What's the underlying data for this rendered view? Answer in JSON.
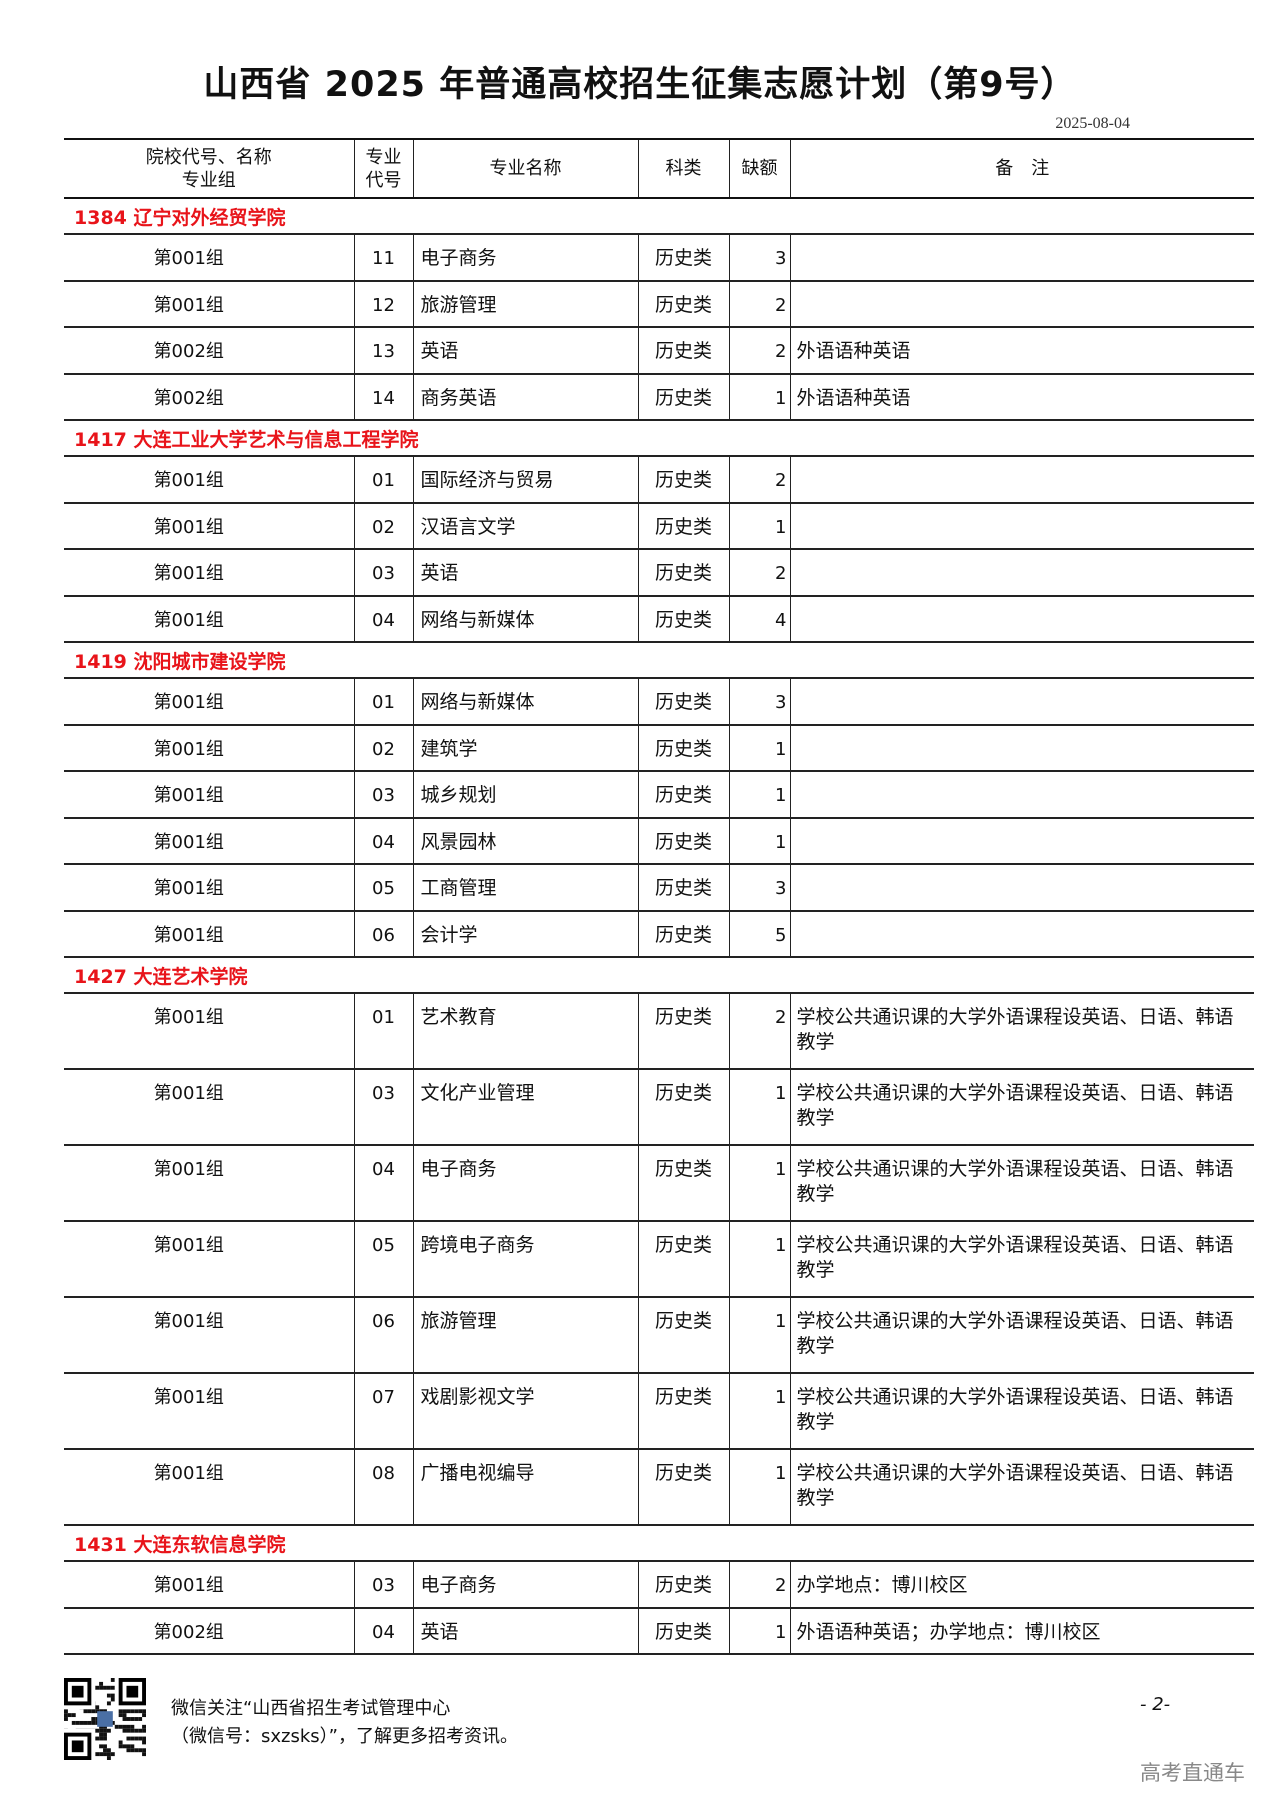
{
  "title": "山西省 2025 年普通高校招生征集志愿计划（第9号）",
  "date": "2025-08-04",
  "columns": {
    "school": "院校代号、名称\n专业组",
    "school_l1": "院校代号、名称",
    "school_l2": "专业组",
    "code_l1": "专业",
    "code_l2": "代号",
    "major": "专业名称",
    "category": "科类",
    "quota": "缺额",
    "note": "备　注"
  },
  "accent_color": "#e8141a",
  "sections": [
    {
      "school": "1384  辽宁对外经贸学院",
      "rows": [
        {
          "group": "第001组",
          "code": "11",
          "major": "电子商务",
          "category": "历史类",
          "quota": "3",
          "note": ""
        },
        {
          "group": "第001组",
          "code": "12",
          "major": "旅游管理",
          "category": "历史类",
          "quota": "2",
          "note": ""
        },
        {
          "group": "第002组",
          "code": "13",
          "major": "英语",
          "category": "历史类",
          "quota": "2",
          "note": "外语语种英语"
        },
        {
          "group": "第002组",
          "code": "14",
          "major": "商务英语",
          "category": "历史类",
          "quota": "1",
          "note": "外语语种英语"
        }
      ]
    },
    {
      "school": "1417  大连工业大学艺术与信息工程学院",
      "rows": [
        {
          "group": "第001组",
          "code": "01",
          "major": "国际经济与贸易",
          "category": "历史类",
          "quota": "2",
          "note": ""
        },
        {
          "group": "第001组",
          "code": "02",
          "major": "汉语言文学",
          "category": "历史类",
          "quota": "1",
          "note": ""
        },
        {
          "group": "第001组",
          "code": "03",
          "major": "英语",
          "category": "历史类",
          "quota": "2",
          "note": ""
        },
        {
          "group": "第001组",
          "code": "04",
          "major": "网络与新媒体",
          "category": "历史类",
          "quota": "4",
          "note": ""
        }
      ]
    },
    {
      "school": "1419  沈阳城市建设学院",
      "rows": [
        {
          "group": "第001组",
          "code": "01",
          "major": "网络与新媒体",
          "category": "历史类",
          "quota": "3",
          "note": ""
        },
        {
          "group": "第001组",
          "code": "02",
          "major": "建筑学",
          "category": "历史类",
          "quota": "1",
          "note": ""
        },
        {
          "group": "第001组",
          "code": "03",
          "major": "城乡规划",
          "category": "历史类",
          "quota": "1",
          "note": ""
        },
        {
          "group": "第001组",
          "code": "04",
          "major": "风景园林",
          "category": "历史类",
          "quota": "1",
          "note": ""
        },
        {
          "group": "第001组",
          "code": "05",
          "major": "工商管理",
          "category": "历史类",
          "quota": "3",
          "note": ""
        },
        {
          "group": "第001组",
          "code": "06",
          "major": "会计学",
          "category": "历史类",
          "quota": "5",
          "note": ""
        }
      ]
    },
    {
      "school": "1427  大连艺术学院",
      "rows": [
        {
          "group": "第001组",
          "code": "01",
          "major": "艺术教育",
          "category": "历史类",
          "quota": "2",
          "note": "学校公共通识课的大学外语课程设英语、日语、韩语教学"
        },
        {
          "group": "第001组",
          "code": "03",
          "major": "文化产业管理",
          "category": "历史类",
          "quota": "1",
          "note": "学校公共通识课的大学外语课程设英语、日语、韩语教学"
        },
        {
          "group": "第001组",
          "code": "04",
          "major": "电子商务",
          "category": "历史类",
          "quota": "1",
          "note": "学校公共通识课的大学外语课程设英语、日语、韩语教学"
        },
        {
          "group": "第001组",
          "code": "05",
          "major": "跨境电子商务",
          "category": "历史类",
          "quota": "1",
          "note": "学校公共通识课的大学外语课程设英语、日语、韩语教学"
        },
        {
          "group": "第001组",
          "code": "06",
          "major": "旅游管理",
          "category": "历史类",
          "quota": "1",
          "note": "学校公共通识课的大学外语课程设英语、日语、韩语教学"
        },
        {
          "group": "第001组",
          "code": "07",
          "major": "戏剧影视文学",
          "category": "历史类",
          "quota": "1",
          "note": "学校公共通识课的大学外语课程设英语、日语、韩语教学"
        },
        {
          "group": "第001组",
          "code": "08",
          "major": "广播电视编导",
          "category": "历史类",
          "quota": "1",
          "note": "学校公共通识课的大学外语课程设英语、日语、韩语教学"
        }
      ]
    },
    {
      "school": "1431  大连东软信息学院",
      "rows": [
        {
          "group": "第001组",
          "code": "03",
          "major": "电子商务",
          "category": "历史类",
          "quota": "2",
          "note": "办学地点：博川校区"
        },
        {
          "group": "第002组",
          "code": "04",
          "major": "英语",
          "category": "历史类",
          "quota": "1",
          "note": "外语语种英语；办学地点：博川校区"
        }
      ]
    }
  ],
  "footer": {
    "line1": "微信关注“山西省招生考试管理中心",
    "line2": "（微信号：sxzsks）”，了解更多招考资讯。",
    "page": "- 2-",
    "watermark": "高考直通车",
    "qr_icon": "qr-code"
  }
}
